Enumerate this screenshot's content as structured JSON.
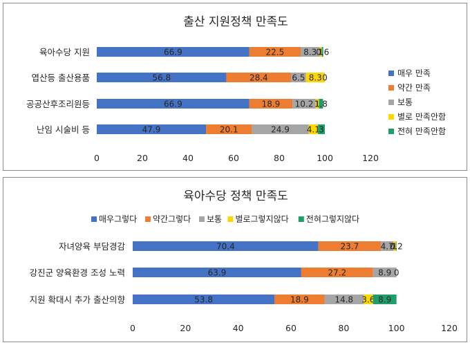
{
  "chart_data": [
    {
      "type": "bar",
      "orientation": "horizontal",
      "stacked": true,
      "title": "출산 지원정책 만족도",
      "categories": [
        "육아수당 지원",
        "엽산등 출산용품",
        "공공산후조리원등",
        "난임 시술비 등"
      ],
      "series": [
        {
          "name": "매우 만족",
          "color": "#4472C4",
          "values": [
            66.9,
            56.8,
            66.9,
            47.9
          ],
          "labels": [
            "66.9",
            "56.8",
            "66.9",
            "47.9"
          ]
        },
        {
          "name": "약간 만족",
          "color": "#ED7D31",
          "values": [
            22.5,
            28.4,
            18.9,
            20.1
          ],
          "labels": [
            "22.5",
            "28.4",
            "18.9",
            "20.1"
          ]
        },
        {
          "name": "보통",
          "color": "#A5A5A5",
          "values": [
            8.3,
            6.5,
            10.2,
            24.9
          ],
          "labels": [
            "8.3",
            "6.5",
            "10.2",
            "24.9"
          ]
        },
        {
          "name": "별로 만족안함",
          "color": "#FFD700",
          "values": [
            1.0,
            8.3,
            1.4,
            4.1
          ],
          "labels": [
            "1",
            "8.3",
            "1",
            "4.1"
          ]
        },
        {
          "name": "전혀 만족안함",
          "color": "#1E9E6A",
          "values": [
            0.6,
            0.0,
            1.8,
            3.0
          ],
          "labels": [
            "0.6",
            "0",
            "1.8",
            "3"
          ]
        }
      ],
      "xlim": [
        0,
        120
      ],
      "xticks": [
        "0",
        "20",
        "40",
        "60",
        "80",
        "100",
        "120"
      ],
      "legend": "right",
      "grid": false
    },
    {
      "type": "bar",
      "orientation": "horizontal",
      "stacked": true,
      "title": "육아수당 정책 만족도",
      "categories": [
        "자녀양육 부담경감",
        "강진군 양육환경 조성 노력",
        "지원 확대시 추가 출산의향"
      ],
      "series": [
        {
          "name": "매우그렇다",
          "color": "#4472C4",
          "values": [
            70.4,
            63.9,
            53.8
          ],
          "labels": [
            "70.4",
            "63.9",
            "53.8"
          ]
        },
        {
          "name": "약간그렇다",
          "color": "#ED7D31",
          "values": [
            23.7,
            27.2,
            18.9
          ],
          "labels": [
            "23.7",
            "27.2",
            "18.9"
          ]
        },
        {
          "name": "보통",
          "color": "#A5A5A5",
          "values": [
            4.7,
            8.9,
            14.8
          ],
          "labels": [
            "4.7",
            "8.9",
            "14.8"
          ]
        },
        {
          "name": "별로그렇지않다",
          "color": "#FFD700",
          "values": [
            1.0,
            0.0,
            3.6
          ],
          "labels": [
            "1",
            "0",
            "3.6"
          ]
        },
        {
          "name": "전혀그렇지않다",
          "color": "#1E9E6A",
          "values": [
            0.2,
            0.0,
            8.9
          ],
          "labels": [
            "0.2",
            "",
            "8.9"
          ]
        }
      ],
      "xlim": [
        0,
        120
      ],
      "xticks": [
        "0",
        "20",
        "40",
        "60",
        "80",
        "100",
        "120"
      ],
      "legend": "top",
      "grid": false
    }
  ]
}
